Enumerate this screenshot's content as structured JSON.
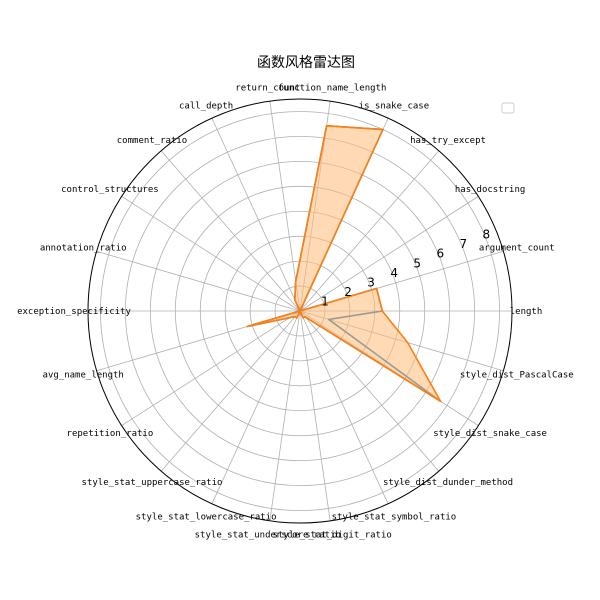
{
  "chart_data": {
    "type": "radar",
    "title": "函数风格雷达图",
    "categories": [
      "length",
      "argument_count",
      "has_docstring",
      "has_try_except",
      "is_snake_case",
      "function_name_length",
      "return_count",
      "call_depth",
      "comment_ratio",
      "control_structures",
      "annotation_ratio",
      "exception_specificity",
      "avg_name_length",
      "repetition_ratio",
      "style_stat_uppercase_ratio",
      "style_stat_lowercase_ratio",
      "style_stat_underscore_ratio",
      "style_stat_digit_ratio",
      "style_stat_symbol_ratio",
      "style_dist_dunder_method",
      "style_dist_snake_case",
      "style_dist_PascalCase"
    ],
    "radial_ticks": [
      1,
      2,
      3,
      4,
      5,
      6,
      7,
      8
    ],
    "rlim": [
      0,
      8.5
    ],
    "grid": true,
    "legend": "top-right",
    "series": [
      {
        "color": "#1f77b4",
        "fill": false,
        "values": [
          3.3,
          3.2,
          0,
          0,
          8.0,
          7.5,
          1.2,
          0.5,
          0,
          0,
          0,
          0,
          2.2,
          0.5,
          0.3,
          0.3,
          0,
          0,
          0.3,
          0.3,
          6.7,
          1.2
        ]
      },
      {
        "color": "#ff7f0e",
        "fill": true,
        "fill_color": "#ffbb78",
        "values": [
          3.3,
          3.2,
          0,
          0,
          8.0,
          7.5,
          1.2,
          0.5,
          0,
          0,
          0,
          0,
          2.2,
          0.5,
          0.3,
          0.3,
          0,
          0,
          0.3,
          0.3,
          6.7,
          4.5
        ]
      }
    ]
  }
}
